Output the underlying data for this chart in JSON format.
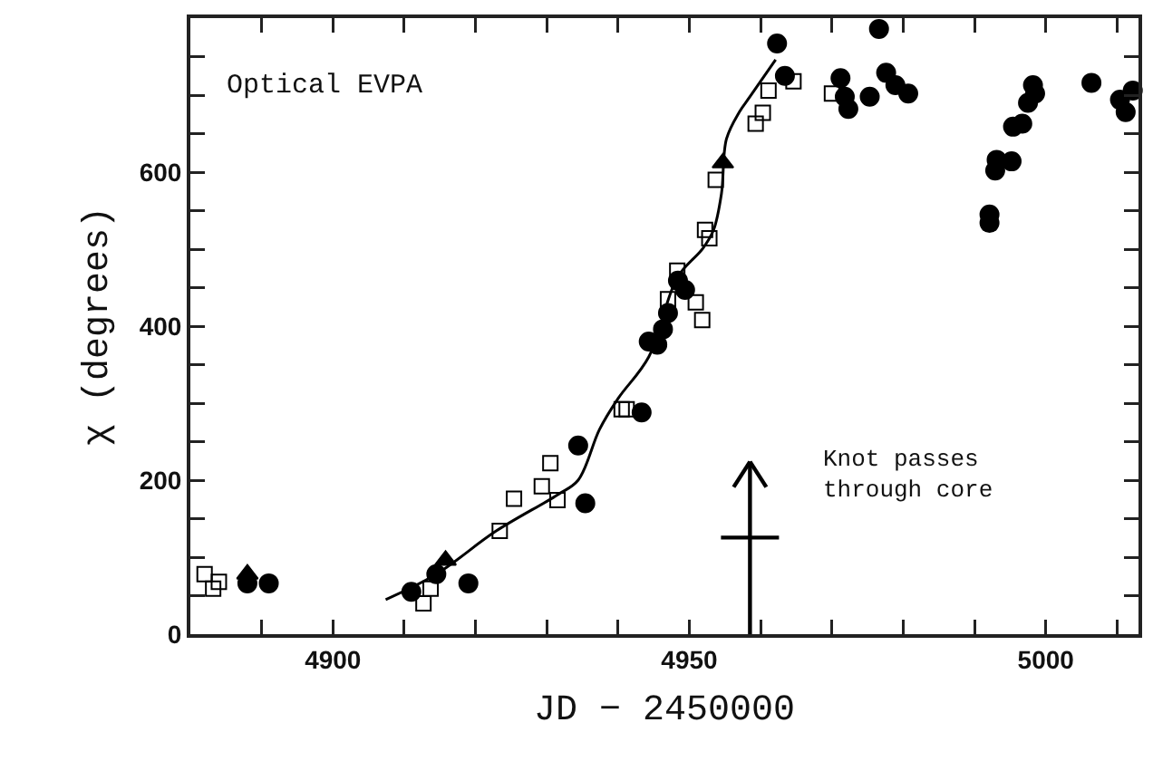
{
  "chart_data": {
    "type": "scatter",
    "xlabel": "JD − 2450000",
    "ylabel": "χ (degrees)",
    "xlim": [
      4880,
      5013
    ],
    "ylim": [
      0,
      800
    ],
    "xticks": [
      {
        "value": 4890,
        "label": null
      },
      4900,
      {
        "value": 4910,
        "label": null
      },
      {
        "value": 4920,
        "label": null
      },
      {
        "value": 4930,
        "label": null
      },
      {
        "value": 4940,
        "label": null
      },
      4950,
      {
        "value": 4960,
        "label": null
      },
      {
        "value": 4970,
        "label": null
      },
      {
        "value": 4980,
        "label": null
      },
      {
        "value": 4990,
        "label": null
      },
      5000,
      {
        "value": 5010,
        "label": null
      }
    ],
    "yticks": [
      0,
      {
        "value": 50,
        "label": null
      },
      {
        "value": 100,
        "label": null
      },
      {
        "value": 150,
        "label": null
      },
      200,
      {
        "value": 250,
        "label": null
      },
      {
        "value": 300,
        "label": null
      },
      {
        "value": 350,
        "label": null
      },
      400,
      {
        "value": 450,
        "label": null
      },
      {
        "value": 500,
        "label": null
      },
      {
        "value": 550,
        "label": null
      },
      600,
      {
        "value": 650,
        "label": null
      },
      {
        "value": 700,
        "label": null
      },
      {
        "value": 750,
        "label": null
      },
      {
        "value": 800,
        "label": null
      }
    ],
    "grid": false,
    "series": [
      {
        "marker": "circle",
        "color": "#000000",
        "x": [
          4888,
          4891,
          4911,
          4914.5,
          4919,
          4934.4,
          4935.4,
          4943.3,
          4944.3,
          4945.5,
          4946.3,
          4947,
          4948.4,
          4949.4,
          4962.3,
          4963.4,
          4971.2,
          4971.8,
          4972.3,
          4975.3,
          4976.6,
          4977.6,
          4978.9,
          4980.7,
          4992.1,
          4992.1,
          4992.9,
          4993.1,
          4995.2,
          4995.4,
          4996.7,
          4997.5,
          4998.2,
          4998.5,
          5006.4,
          5010.4,
          5011.2,
          5012.2
        ],
        "values": [
          66,
          66,
          55,
          78,
          66,
          245,
          170,
          288,
          380,
          376,
          396,
          417,
          459,
          447,
          767,
          725,
          722,
          698,
          682,
          698,
          786,
          729,
          713,
          702,
          545,
          534,
          602,
          616,
          614,
          659,
          663,
          690,
          713,
          702,
          716,
          694,
          678,
          706
        ]
      },
      {
        "marker": "square",
        "color": "#000000",
        "x": [
          4882,
          4883.2,
          4884,
          4912.7,
          4913.7,
          4923.4,
          4925.4,
          4929.3,
          4930.5,
          4931.5,
          4940.5,
          4941.2,
          4947,
          4948.3,
          4950.9,
          4951.8,
          4952.2,
          4952.8,
          4953.7,
          4959.3,
          4960.3,
          4961.1,
          4964.6,
          4970
        ],
        "values": [
          78,
          59,
          68,
          40,
          59,
          134,
          176,
          192,
          222,
          174,
          292,
          292,
          435,
          472,
          431,
          408,
          525,
          514,
          590,
          663,
          677,
          706,
          718,
          702
        ]
      },
      {
        "marker": "triangle",
        "color": "#000000",
        "x": [
          4888,
          4915.8,
          4954.7
        ],
        "values": [
          78,
          96,
          612
        ]
      },
      {
        "type": "line",
        "marker": "none",
        "color": "#000000",
        "x": [
          4907.4,
          4914.5,
          4922.9,
          4931.5,
          4934.4,
          4937.4,
          4940,
          4944.3,
          4948.3,
          4951.9,
          4953.4,
          4954.5,
          4955.2,
          4957,
          4958.5,
          4962.1
        ],
        "values": [
          45,
          78,
          134,
          181,
          200,
          266,
          306,
          360,
          463,
          501,
          525,
          572,
          643,
          678,
          698,
          746
        ]
      }
    ],
    "ref_lines": [
      {
        "axis": "x",
        "value": 4958.5,
        "label": "Knot passes\nthrough core",
        "color": "#000000"
      }
    ],
    "annotations": [
      "Optical EVPA"
    ]
  }
}
